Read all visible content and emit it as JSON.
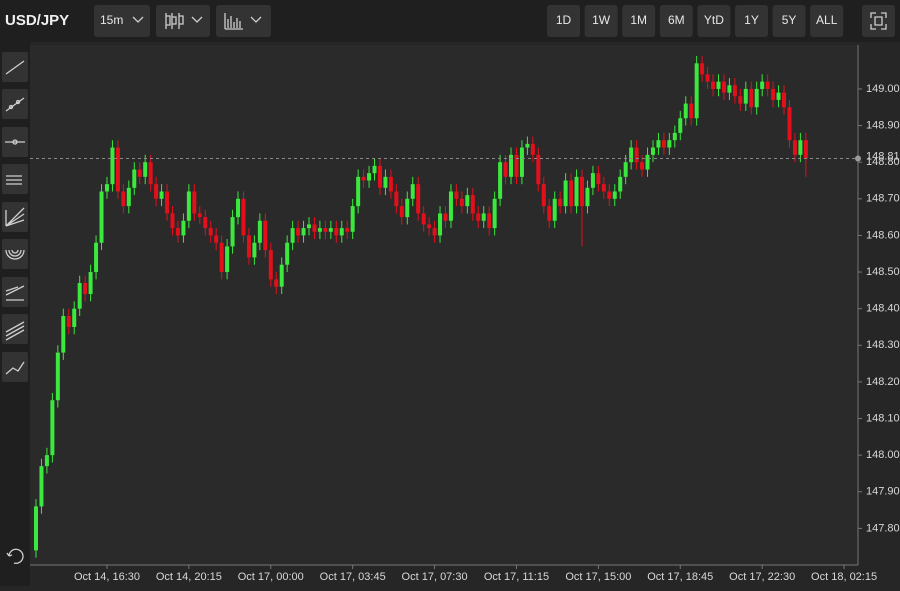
{
  "toolbar": {
    "symbol": "USD/JPY",
    "interval": "15m",
    "ranges": [
      "1D",
      "1W",
      "1M",
      "6M",
      "YtD",
      "1Y",
      "5Y",
      "ALL"
    ]
  },
  "chart_data": {
    "type": "candlestick",
    "up_color": "#3be83d",
    "down_color": "#e3101c",
    "categories": [
      null,
      null,
      null,
      null,
      null,
      null,
      null,
      null,
      null,
      null,
      null,
      null,
      null,
      "Oct 14, 16:30",
      null,
      null,
      null,
      null,
      null,
      null,
      null,
      null,
      null,
      null,
      null,
      null,
      null,
      null,
      "Oct 14, 20:15",
      null,
      null,
      null,
      null,
      null,
      null,
      null,
      null,
      null,
      null,
      null,
      null,
      null,
      null,
      "Oct 17, 00:00",
      null,
      null,
      null,
      null,
      null,
      null,
      null,
      null,
      null,
      null,
      null,
      null,
      null,
      null,
      "Oct 17, 03:45",
      null,
      null,
      null,
      null,
      null,
      null,
      null,
      null,
      null,
      null,
      null,
      null,
      null,
      null,
      "Oct 17, 07:30",
      null,
      null,
      null,
      null,
      null,
      null,
      null,
      null,
      null,
      null,
      null,
      null,
      null,
      null,
      "Oct 17, 11:15",
      null,
      null,
      null,
      null,
      null,
      null,
      null,
      null,
      null,
      null,
      null,
      null,
      null,
      null,
      "Oct 17, 15:00",
      null,
      null,
      null,
      null,
      null,
      null,
      null,
      null,
      null,
      null,
      null,
      null,
      null,
      null,
      "Oct 17, 18:45",
      null,
      null,
      null,
      null,
      null,
      null,
      null,
      null,
      null,
      null,
      null,
      null,
      null,
      null,
      "Oct 17, 22:30",
      null,
      null,
      null,
      null,
      null,
      null,
      null,
      null,
      null,
      null,
      null,
      null,
      null,
      null,
      "Oct 18, 02:15"
    ],
    "open": [
      147.74,
      147.86,
      147.97,
      148.0,
      148.15,
      148.28,
      148.38,
      148.35,
      148.4,
      148.47,
      148.44,
      148.5,
      148.58,
      148.72,
      148.74,
      148.84,
      148.72,
      148.68,
      148.73,
      148.78,
      148.76,
      148.8,
      148.74,
      148.7,
      148.72,
      148.66,
      148.62,
      148.6,
      148.64,
      148.72,
      148.66,
      148.65,
      148.62,
      148.6,
      148.58,
      148.5,
      148.57,
      148.65,
      148.7,
      148.6,
      148.54,
      148.58,
      148.64,
      148.56,
      148.48,
      148.46,
      148.52,
      148.58,
      148.62,
      148.6,
      148.62,
      148.63,
      148.61,
      148.62,
      148.61,
      148.62,
      148.6,
      148.62,
      148.61,
      148.68,
      148.76,
      148.75,
      148.77,
      148.79,
      148.73,
      148.76,
      148.72,
      148.68,
      148.65,
      148.7,
      148.74,
      148.66,
      148.63,
      148.62,
      148.6,
      148.66,
      148.64,
      148.72,
      148.7,
      148.68,
      148.71,
      148.66,
      148.64,
      148.66,
      148.62,
      148.7,
      148.8,
      148.76,
      148.82,
      148.76,
      148.84,
      148.85,
      148.82,
      148.74,
      148.68,
      148.64,
      148.7,
      148.68,
      148.75,
      148.68,
      148.76,
      148.68,
      148.73,
      148.77,
      148.74,
      148.72,
      148.7,
      148.72,
      148.76,
      148.8,
      148.84,
      148.8,
      148.78,
      148.82,
      148.84,
      148.86,
      148.84,
      148.86,
      148.88,
      148.92,
      148.96,
      148.92,
      149.07,
      149.04,
      149.02,
      149.0,
      149.02,
      148.99,
      149.01,
      148.98,
      148.96,
      149.0,
      148.95,
      149.0,
      149.02,
      149.0,
      148.97,
      148.99,
      148.95,
      148.86,
      148.82,
      148.86,
      null,
      null,
      null,
      null,
      null,
      null,
      null
    ],
    "high": [
      147.88,
      147.99,
      148.02,
      148.17,
      148.3,
      148.4,
      148.4,
      148.42,
      148.49,
      148.49,
      148.52,
      148.6,
      148.74,
      148.76,
      148.86,
      148.86,
      148.74,
      148.75,
      148.8,
      148.8,
      148.82,
      148.82,
      148.76,
      148.74,
      148.74,
      148.68,
      148.64,
      148.66,
      148.74,
      148.74,
      148.68,
      148.67,
      148.64,
      148.62,
      148.6,
      148.59,
      148.67,
      148.72,
      148.72,
      148.62,
      148.6,
      148.66,
      148.66,
      148.58,
      148.5,
      148.54,
      148.6,
      148.64,
      148.64,
      148.64,
      148.65,
      148.65,
      148.64,
      148.64,
      148.64,
      148.64,
      148.64,
      148.64,
      148.7,
      148.78,
      148.78,
      148.79,
      148.81,
      148.81,
      148.78,
      148.78,
      148.74,
      148.7,
      148.72,
      148.76,
      148.76,
      148.68,
      148.65,
      148.64,
      148.68,
      148.68,
      148.74,
      148.74,
      148.72,
      148.73,
      148.73,
      148.68,
      148.68,
      148.68,
      148.72,
      148.82,
      148.82,
      148.84,
      148.84,
      148.86,
      148.87,
      148.87,
      148.84,
      148.76,
      148.7,
      148.72,
      148.72,
      148.77,
      148.77,
      148.78,
      148.78,
      148.75,
      148.79,
      148.79,
      148.76,
      148.74,
      148.74,
      148.78,
      148.82,
      148.86,
      148.86,
      148.82,
      148.84,
      148.86,
      148.88,
      148.88,
      148.88,
      148.9,
      148.94,
      148.98,
      148.98,
      149.09,
      149.09,
      149.06,
      149.04,
      149.04,
      149.04,
      149.03,
      149.03,
      149.0,
      149.02,
      149.02,
      149.02,
      149.04,
      149.04,
      149.02,
      149.01,
      149.01,
      148.97,
      148.88,
      148.88,
      148.88,
      null,
      null,
      null,
      null,
      null,
      null,
      null
    ],
    "low": [
      147.72,
      147.84,
      147.95,
      147.98,
      148.13,
      148.26,
      148.33,
      148.33,
      148.38,
      148.42,
      148.42,
      148.48,
      148.56,
      148.7,
      148.72,
      148.7,
      148.66,
      148.66,
      148.71,
      148.74,
      148.74,
      148.72,
      148.68,
      148.68,
      148.64,
      148.6,
      148.58,
      148.58,
      148.62,
      148.64,
      148.63,
      148.6,
      148.58,
      148.56,
      148.48,
      148.48,
      148.55,
      148.63,
      148.58,
      148.52,
      148.52,
      148.56,
      148.54,
      148.46,
      148.44,
      148.44,
      148.5,
      148.56,
      148.58,
      148.58,
      148.6,
      148.59,
      148.59,
      148.59,
      148.59,
      148.58,
      148.58,
      148.59,
      148.59,
      148.66,
      148.73,
      148.73,
      148.75,
      148.71,
      148.71,
      148.7,
      148.66,
      148.63,
      148.63,
      148.68,
      148.64,
      148.61,
      148.6,
      148.58,
      148.58,
      148.62,
      148.62,
      148.68,
      148.66,
      148.66,
      148.64,
      148.62,
      148.62,
      148.6,
      148.6,
      148.68,
      148.74,
      148.74,
      148.74,
      148.74,
      148.82,
      148.8,
      148.72,
      148.66,
      148.62,
      148.62,
      148.66,
      148.66,
      148.66,
      148.66,
      148.57,
      148.66,
      148.71,
      148.72,
      148.7,
      148.68,
      148.68,
      148.7,
      148.74,
      148.78,
      148.78,
      148.76,
      148.76,
      148.8,
      148.82,
      148.82,
      148.82,
      148.84,
      148.86,
      148.9,
      148.9,
      148.9,
      149.02,
      149.0,
      148.98,
      148.98,
      148.97,
      148.97,
      148.96,
      148.94,
      148.94,
      148.93,
      148.93,
      148.98,
      148.98,
      148.95,
      148.95,
      148.93,
      148.84,
      148.8,
      148.8,
      148.76,
      null,
      null,
      null,
      null,
      null,
      null,
      null
    ],
    "close": [
      147.86,
      147.97,
      148.0,
      148.15,
      148.28,
      148.38,
      148.35,
      148.4,
      148.47,
      148.44,
      148.5,
      148.58,
      148.72,
      148.74,
      148.84,
      148.72,
      148.68,
      148.73,
      148.78,
      148.76,
      148.8,
      148.74,
      148.7,
      148.72,
      148.66,
      148.62,
      148.6,
      148.64,
      148.72,
      148.66,
      148.65,
      148.62,
      148.6,
      148.58,
      148.5,
      148.57,
      148.65,
      148.7,
      148.6,
      148.54,
      148.58,
      148.64,
      148.56,
      148.48,
      148.46,
      148.52,
      148.58,
      148.62,
      148.6,
      148.62,
      148.63,
      148.61,
      148.62,
      148.61,
      148.62,
      148.6,
      148.62,
      148.61,
      148.68,
      148.76,
      148.75,
      148.77,
      148.79,
      148.73,
      148.76,
      148.72,
      148.68,
      148.65,
      148.7,
      148.74,
      148.66,
      148.63,
      148.62,
      148.6,
      148.66,
      148.64,
      148.72,
      148.7,
      148.68,
      148.71,
      148.66,
      148.64,
      148.66,
      148.62,
      148.7,
      148.8,
      148.76,
      148.82,
      148.76,
      148.84,
      148.85,
      148.82,
      148.74,
      148.68,
      148.64,
      148.7,
      148.68,
      148.75,
      148.68,
      148.76,
      148.68,
      148.73,
      148.77,
      148.74,
      148.72,
      148.7,
      148.72,
      148.76,
      148.8,
      148.84,
      148.8,
      148.78,
      148.82,
      148.84,
      148.86,
      148.84,
      148.86,
      148.88,
      148.92,
      148.96,
      148.92,
      149.07,
      149.04,
      149.02,
      149.0,
      149.02,
      148.99,
      149.01,
      148.98,
      148.96,
      149.0,
      148.95,
      149.0,
      149.02,
      149.0,
      148.97,
      148.99,
      148.95,
      148.86,
      148.82,
      148.86,
      148.81,
      null,
      null,
      null,
      null,
      null,
      null,
      null
    ],
    "ylim": [
      147.7,
      149.12
    ],
    "yticks": [
      {
        "value": 147.8,
        "label": "147.80"
      },
      {
        "value": 147.9,
        "label": "147.90"
      },
      {
        "value": 148.0,
        "label": "148.00"
      },
      {
        "value": 148.1,
        "label": "148.10"
      },
      {
        "value": 148.2,
        "label": "148.20"
      },
      {
        "value": 148.3,
        "label": "148.30"
      },
      {
        "value": 148.4,
        "label": "148.40"
      },
      {
        "value": 148.5,
        "label": "148.50"
      },
      {
        "value": 148.6,
        "label": "148.60"
      },
      {
        "value": 148.7,
        "label": "148.70"
      },
      {
        "value": 148.8,
        "label": "148.80"
      },
      {
        "value": 148.9,
        "label": "148.90"
      },
      {
        "value": 149.0,
        "label": "149.00"
      }
    ],
    "last_price": {
      "value": 148.81,
      "label": "148.81"
    },
    "grid": false
  }
}
